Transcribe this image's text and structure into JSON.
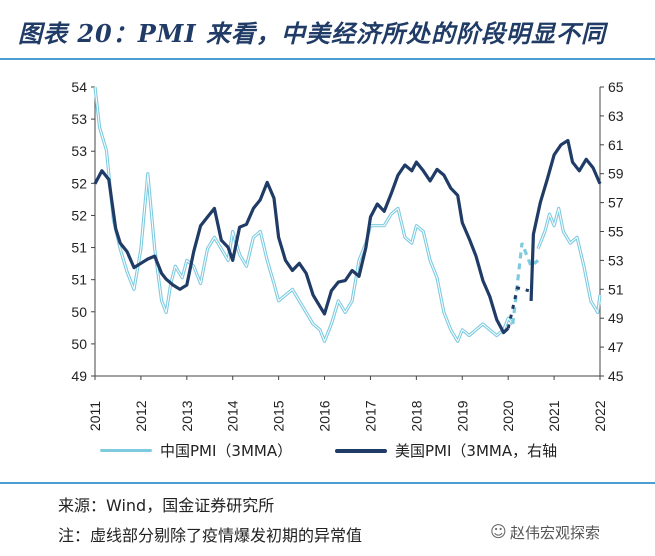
{
  "header": {
    "title": "图表 20：PMI 来看，中美经济所处的阶段明显不同"
  },
  "chart_data": {
    "type": "line",
    "x_ticks": [
      "2011",
      "2012",
      "2013",
      "2014",
      "2015",
      "2016",
      "2017",
      "2018",
      "2019",
      "2020",
      "2021",
      "2022"
    ],
    "left_axis": {
      "ticks": [
        "54",
        "53",
        "53",
        "52",
        "52",
        "51",
        "51",
        "50",
        "50",
        "49"
      ],
      "range": [
        49,
        54
      ]
    },
    "right_axis": {
      "ticks": [
        "65",
        "63",
        "61",
        "59",
        "57",
        "55",
        "53",
        "51",
        "49",
        "47",
        "45"
      ],
      "range": [
        45,
        65
      ]
    },
    "series": [
      {
        "name": "中国PMI（3MMA）",
        "axis": "left",
        "color": "#7ecbe0",
        "x": [
          2011.0,
          2011.1,
          2011.25,
          2011.4,
          2011.55,
          2011.7,
          2011.85,
          2012.0,
          2012.15,
          2012.3,
          2012.45,
          2012.55,
          2012.65,
          2012.75,
          2012.9,
          2013.0,
          2013.15,
          2013.3,
          2013.45,
          2013.6,
          2013.75,
          2013.9,
          2014.0,
          2014.15,
          2014.3,
          2014.45,
          2014.6,
          2014.75,
          2014.9,
          2015.0,
          2015.15,
          2015.3,
          2015.45,
          2015.6,
          2015.75,
          2015.9,
          2016.0,
          2016.15,
          2016.3,
          2016.45,
          2016.6,
          2016.75,
          2016.9,
          2017.0,
          2017.15,
          2017.3,
          2017.45,
          2017.6,
          2017.75,
          2017.9,
          2018.0,
          2018.15,
          2018.3,
          2018.45,
          2018.6,
          2018.75,
          2018.9,
          2019.0,
          2019.15,
          2019.3,
          2019.45,
          2019.6,
          2019.75,
          2019.9,
          2020.0,
          2020.1
        ],
        "values": [
          54.0,
          53.3,
          52.9,
          51.7,
          51.2,
          50.8,
          50.5,
          51.2,
          52.5,
          51.2,
          50.3,
          50.1,
          50.6,
          50.9,
          50.7,
          51.0,
          50.9,
          50.6,
          51.2,
          51.4,
          51.2,
          51.0,
          51.5,
          51.1,
          50.9,
          51.4,
          51.5,
          51.0,
          50.6,
          50.3,
          50.4,
          50.5,
          50.3,
          50.1,
          49.9,
          49.8,
          49.6,
          49.9,
          50.3,
          50.1,
          50.3,
          51.0,
          51.3,
          51.6,
          51.6,
          51.6,
          51.8,
          51.9,
          51.4,
          51.3,
          51.6,
          51.5,
          51.0,
          50.7,
          50.1,
          49.8,
          49.6,
          49.8,
          49.7,
          49.8,
          49.9,
          49.8,
          49.7,
          49.8,
          50.0,
          49.9
        ]
      },
      {
        "name": "美国PMI（3MMA，右轴）",
        "axis": "right",
        "color": "#1f3b66",
        "x": [
          2011.0,
          2011.15,
          2011.3,
          2011.45,
          2011.55,
          2011.7,
          2011.85,
          2012.0,
          2012.15,
          2012.3,
          2012.45,
          2012.55,
          2012.7,
          2012.85,
          2013.0,
          2013.15,
          2013.3,
          2013.45,
          2013.6,
          2013.75,
          2013.9,
          2014.0,
          2014.15,
          2014.3,
          2014.45,
          2014.6,
          2014.75,
          2014.9,
          2015.0,
          2015.15,
          2015.3,
          2015.45,
          2015.6,
          2015.75,
          2015.9,
          2016.0,
          2016.15,
          2016.3,
          2016.45,
          2016.6,
          2016.75,
          2016.9,
          2017.0,
          2017.15,
          2017.3,
          2017.45,
          2017.6,
          2017.75,
          2017.9,
          2018.0,
          2018.15,
          2018.3,
          2018.45,
          2018.6,
          2018.75,
          2018.9,
          2019.0,
          2019.15,
          2019.3,
          2019.45,
          2019.6,
          2019.75,
          2019.9,
          2020.0
        ],
        "values": [
          58.3,
          59.2,
          58.6,
          55.2,
          54.2,
          53.6,
          52.5,
          52.8,
          53.1,
          53.3,
          52.1,
          51.7,
          51.3,
          51.0,
          51.3,
          53.6,
          55.4,
          56.0,
          56.6,
          54.4,
          53.9,
          53.0,
          55.3,
          55.5,
          56.6,
          57.2,
          58.4,
          57.3,
          54.6,
          53.0,
          52.3,
          52.8,
          52.1,
          50.6,
          49.8,
          49.3,
          50.9,
          51.5,
          51.6,
          52.3,
          51.9,
          53.9,
          56.0,
          56.9,
          56.4,
          57.6,
          58.9,
          59.6,
          59.2,
          59.8,
          59.2,
          58.5,
          59.3,
          58.9,
          58.0,
          57.5,
          55.6,
          54.5,
          53.3,
          51.6,
          50.5,
          48.9,
          48.0,
          48.3
        ]
      }
    ]
  },
  "legend": {
    "china_label": "中国PMI（3MMA）",
    "us_label": "美国PMI（3MMA，右轴"
  },
  "source": "来源：Wind，国金证券研究所",
  "note": "注：虚线部分剔除了疫情爆发初期的异常值",
  "watermark": "赵伟宏观探索"
}
